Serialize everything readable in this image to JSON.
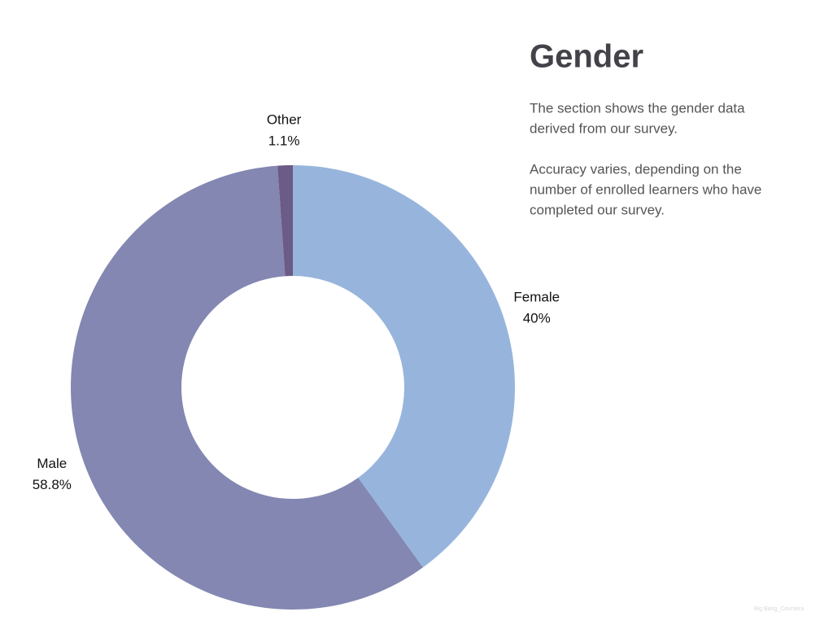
{
  "chart_data": {
    "type": "donut",
    "categories": [
      "Female",
      "Male",
      "Other"
    ],
    "values": [
      40,
      58.8,
      1.1
    ],
    "value_labels": [
      "40%",
      "58.8%",
      "1.1%"
    ],
    "colors": [
      "#97b5dc",
      "#8387b1",
      "#6b5b86"
    ]
  },
  "panel": {
    "title": "Gender",
    "paragraphs": [
      [
        "The section shows the gender data",
        "derived from our survey."
      ],
      [
        "Accuracy varies, depending on the",
        "number of enrolled learners who have",
        "completed our survey."
      ]
    ]
  },
  "watermark": "Big Bang_Coursera"
}
